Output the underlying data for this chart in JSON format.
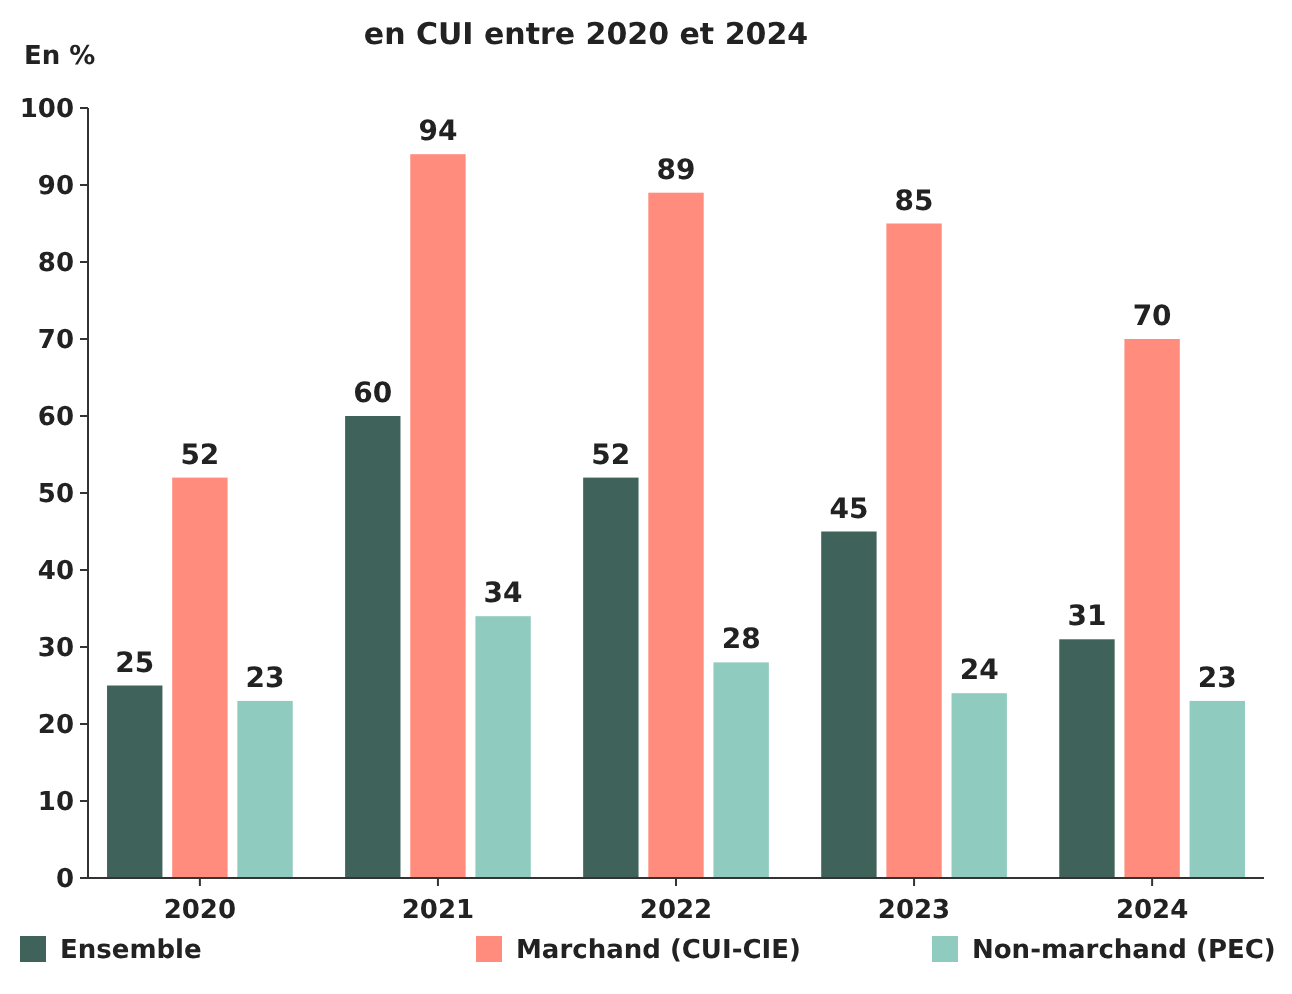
{
  "chart_data": {
    "type": "bar",
    "title": "en CUI entre 2020 et 2024",
    "ylabel": "En %",
    "categories": [
      "2020",
      "2021",
      "2022",
      "2023",
      "2024"
    ],
    "series": [
      {
        "name": "Ensemble",
        "color": "#3f625b",
        "values": [
          25,
          60,
          52,
          45,
          31
        ]
      },
      {
        "name": "Marchand (CUI-CIE)",
        "color": "#ff8c7d",
        "values": [
          52,
          94,
          89,
          85,
          70
        ]
      },
      {
        "name": "Non-marchand (PEC)",
        "color": "#8fcbbf",
        "values": [
          23,
          34,
          28,
          24,
          23
        ]
      }
    ],
    "ylim": [
      0,
      100
    ],
    "yticks": [
      0,
      10,
      20,
      30,
      40,
      50,
      60,
      70,
      80,
      90,
      100
    ],
    "data_labels": true,
    "legend": "bottom",
    "grid": false
  }
}
